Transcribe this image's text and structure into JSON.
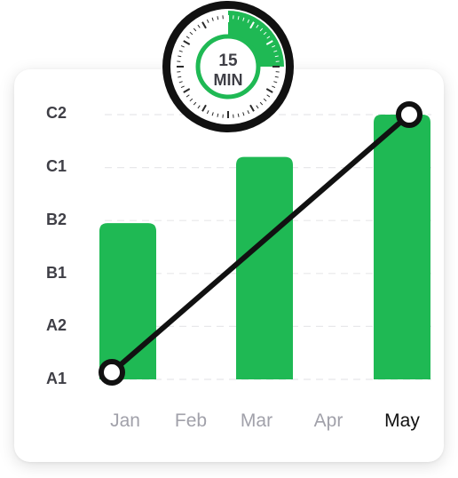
{
  "timer": {
    "value_label": "15",
    "unit_label": "MIN",
    "progress_fraction": 0.25,
    "accent": "#1fb954"
  },
  "chart_data": {
    "type": "bar",
    "categories": [
      "Jan",
      "Feb",
      "Mar",
      "Apr",
      "May"
    ],
    "highlighted_category": "May",
    "y_levels": [
      "A1",
      "A2",
      "B1",
      "B2",
      "C2"
    ],
    "y_levels_full": [
      "A1",
      "A2",
      "B1",
      "B2",
      "C1",
      "C2"
    ],
    "ylim": [
      0,
      5
    ],
    "series": [
      {
        "type": "bar",
        "values": [
          2.95,
          null,
          4.2,
          null,
          5.0
        ]
      },
      {
        "type": "line",
        "values": [
          0.1,
          null,
          null,
          null,
          5.0
        ]
      }
    ],
    "grid": true,
    "colors": {
      "bar": "#1fb954",
      "line": "#111111"
    }
  }
}
